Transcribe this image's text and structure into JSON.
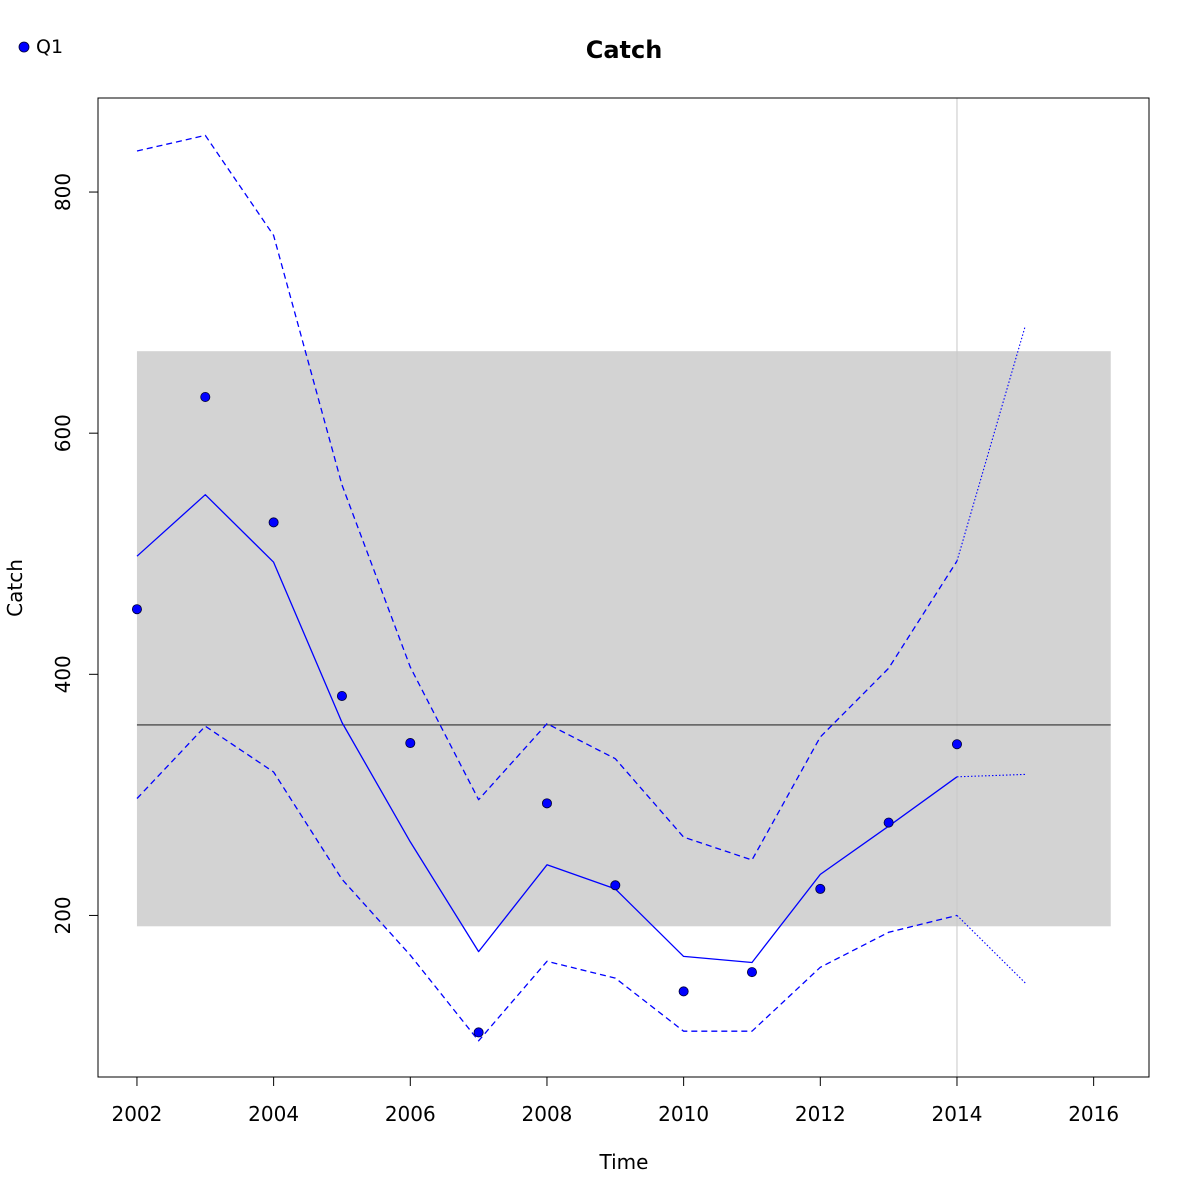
{
  "chart_data": {
    "type": "line",
    "title": "Catch",
    "xlabel": "Time",
    "ylabel": "Catch",
    "xlim": [
      2001.43,
      2016.81
    ],
    "ylim": [
      66.0,
      878.0
    ],
    "x_ticks": [
      2002,
      2004,
      2006,
      2008,
      2010,
      2012,
      2014,
      2016
    ],
    "y_ticks": [
      200,
      400,
      600,
      800
    ],
    "legend": {
      "position": "top-left",
      "entries": [
        {
          "label": "Q1",
          "color": "#0000ff",
          "marker": "filled-circle"
        }
      ]
    },
    "colors": {
      "series": "#0000ff",
      "band": "#d3d3d3",
      "reference_line": "#000000",
      "vertical_marker": "#c8c8c8"
    },
    "grid": false,
    "reference_band": {
      "x": [
        2002,
        2016.25
      ],
      "y": [
        191,
        668
      ]
    },
    "reference_line": {
      "x": [
        2002,
        2016.25
      ],
      "y": 358
    },
    "vertical_marker": {
      "x": 2014
    },
    "series": [
      {
        "name": "Q1",
        "role": "observed",
        "style": "points",
        "x": [
          2002,
          2003,
          2004,
          2005,
          2006,
          2007,
          2008,
          2009,
          2010,
          2011,
          2012,
          2013,
          2014
        ],
        "y": [
          454,
          630,
          526,
          382,
          343,
          103,
          293,
          225,
          137,
          153,
          222,
          277,
          342
        ]
      },
      {
        "role": "fitted",
        "style": "solid",
        "x": [
          2002,
          2003,
          2004,
          2005,
          2006,
          2007,
          2008,
          2009,
          2010,
          2011,
          2012,
          2013,
          2014
        ],
        "y": [
          498,
          549,
          493,
          360,
          261,
          170,
          242,
          222,
          166,
          161,
          234,
          274,
          315
        ]
      },
      {
        "role": "upper-bound",
        "style": "dashed",
        "x": [
          2002,
          2003,
          2004,
          2005,
          2006,
          2007,
          2008,
          2009,
          2010,
          2011,
          2012,
          2013,
          2014
        ],
        "y": [
          834,
          847,
          764,
          557,
          406,
          296,
          359,
          330,
          265,
          246,
          348,
          405,
          494
        ]
      },
      {
        "role": "lower-bound",
        "style": "dashed",
        "x": [
          2002,
          2003,
          2004,
          2005,
          2006,
          2007,
          2008,
          2009,
          2010,
          2011,
          2012,
          2013,
          2014
        ],
        "y": [
          297,
          357,
          319,
          230,
          167,
          96,
          162,
          148,
          104,
          104,
          157,
          186,
          200
        ]
      },
      {
        "role": "forecast",
        "style": "dotted",
        "x": [
          2014,
          2015
        ],
        "y": [
          315,
          317
        ]
      },
      {
        "role": "forecast-upper",
        "style": "dotted",
        "x": [
          2014,
          2015
        ],
        "y": [
          494,
          689
        ]
      },
      {
        "role": "forecast-lower",
        "style": "dotted",
        "x": [
          2014,
          2015
        ],
        "y": [
          200,
          144
        ]
      }
    ]
  }
}
